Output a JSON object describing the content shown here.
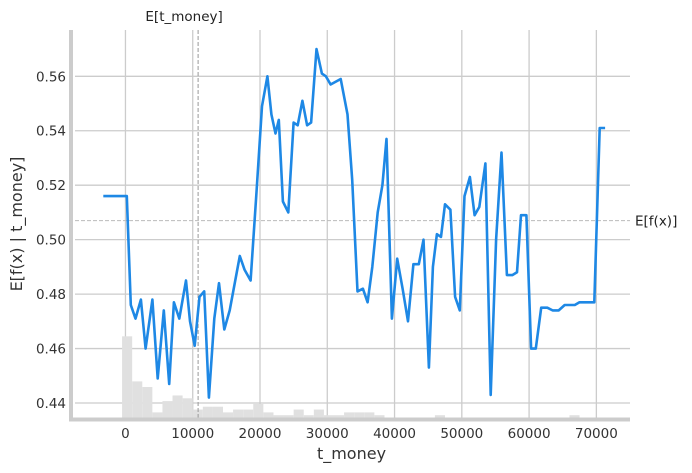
{
  "chart_data": {
    "type": "line",
    "xlabel": "t_money",
    "ylabel": "E[f(x) | t_money]",
    "xlim": [
      -7500,
      75000
    ],
    "ylim": [
      0.4345,
      0.577
    ],
    "xticks": [
      0,
      10000,
      20000,
      30000,
      40000,
      50000,
      60000,
      70000
    ],
    "xtick_labels": [
      "0",
      "10000",
      "20000",
      "30000",
      "40000",
      "50000",
      "60000",
      "70000"
    ],
    "yticks": [
      0.44,
      0.46,
      0.48,
      0.5,
      0.52,
      0.54,
      0.56
    ],
    "ytick_labels": [
      "0.44",
      "0.46",
      "0.48",
      "0.50",
      "0.52",
      "0.54",
      "0.56"
    ],
    "grid": true,
    "line_color": "#1E88E5",
    "histogram_color": "#e0e0e0",
    "reference_lines": {
      "expected_x": {
        "label": "E[t_money]",
        "value": 10800
      },
      "expected_fx": {
        "label": "E[f(x)]",
        "value": 0.507
      }
    },
    "series": [
      {
        "x": [
          -3300,
          -200,
          200,
          800,
          1500,
          2300,
          3000,
          4000,
          4800,
          5700,
          6500,
          7200,
          8000,
          9000,
          9600,
          10300,
          11000,
          11700,
          12400,
          13200,
          13900,
          14700,
          15500,
          17000,
          17700,
          18600,
          19500,
          20300,
          21100,
          21700,
          22300,
          22800,
          23400,
          24200,
          25000,
          25600,
          26300,
          27000,
          27600,
          28400,
          29200,
          29800,
          30500,
          32000,
          33000,
          33700,
          34500,
          35300,
          36000,
          36700,
          37500,
          38200,
          38800,
          39600,
          40400,
          41200,
          42000,
          42800,
          43600,
          44300,
          45100,
          45700,
          46300,
          46900,
          47500,
          48300,
          49000,
          49700,
          50400,
          51200,
          51900,
          52600,
          53500,
          54300,
          55100,
          55900,
          56700,
          57500,
          58200,
          58800,
          59600,
          60300,
          61000,
          61800,
          62700,
          63500,
          64400,
          65300,
          66100,
          66800,
          67500,
          68300,
          69100,
          69700,
          70500,
          71300
        ],
        "y": [
          0.516,
          0.516,
          0.516,
          0.476,
          0.471,
          0.478,
          0.46,
          0.478,
          0.449,
          0.474,
          0.447,
          0.477,
          0.471,
          0.485,
          0.47,
          0.461,
          0.479,
          0.481,
          0.442,
          0.471,
          0.484,
          0.467,
          0.474,
          0.494,
          0.489,
          0.485,
          0.518,
          0.549,
          0.56,
          0.546,
          0.539,
          0.544,
          0.514,
          0.51,
          0.543,
          0.542,
          0.551,
          0.542,
          0.543,
          0.57,
          0.561,
          0.56,
          0.557,
          0.559,
          0.546,
          0.522,
          0.481,
          0.482,
          0.477,
          0.49,
          0.51,
          0.52,
          0.537,
          0.471,
          0.493,
          0.482,
          0.47,
          0.491,
          0.491,
          0.5,
          0.453,
          0.49,
          0.502,
          0.501,
          0.513,
          0.511,
          0.479,
          0.474,
          0.516,
          0.523,
          0.509,
          0.512,
          0.528,
          0.443,
          0.5,
          0.532,
          0.487,
          0.487,
          0.488,
          0.509,
          0.509,
          0.46,
          0.46,
          0.475,
          0.475,
          0.474,
          0.474,
          0.476,
          0.476,
          0.476,
          0.477,
          0.477,
          0.477,
          0.477,
          0.541,
          0.541
        ]
      }
    ],
    "histogram": {
      "bin_edges": [
        -500,
        1000,
        2500,
        4000,
        5500,
        7000,
        8500,
        10000,
        11500,
        13000,
        14500,
        16000,
        17500,
        19000,
        20500,
        22000,
        23500,
        25000,
        26500,
        28000,
        29500,
        31000,
        32500,
        34000,
        35500,
        37000,
        38500,
        46000,
        47500,
        66000,
        67500
      ],
      "counts": [
        29,
        13,
        11,
        2,
        6,
        8,
        7,
        3,
        4,
        4,
        2,
        3,
        3,
        5,
        2,
        1,
        1,
        3,
        1,
        3,
        1,
        1,
        2,
        2,
        2,
        1,
        0,
        1,
        0,
        1
      ]
    }
  }
}
